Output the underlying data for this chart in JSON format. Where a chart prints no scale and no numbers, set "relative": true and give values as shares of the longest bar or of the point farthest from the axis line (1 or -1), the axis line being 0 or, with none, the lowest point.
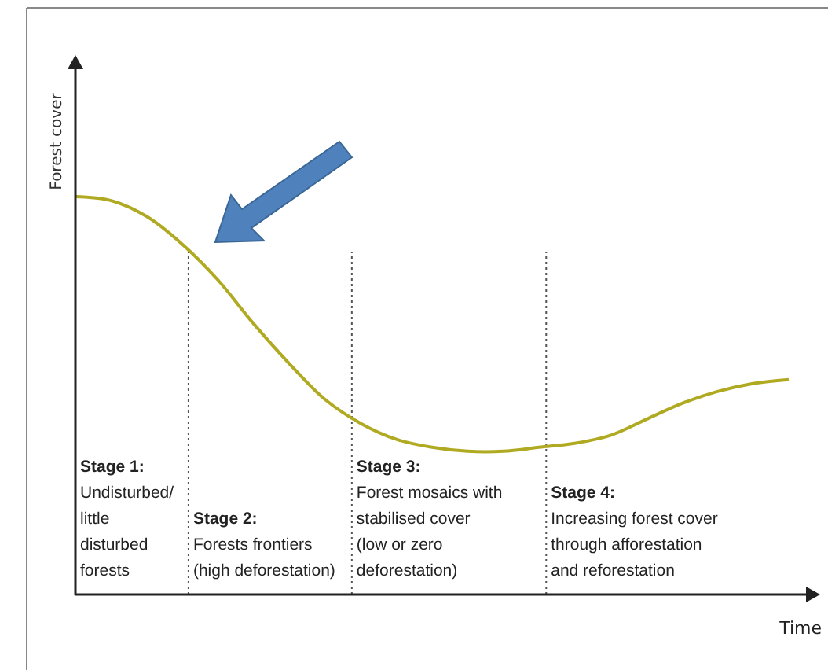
{
  "chart_data": {
    "type": "line",
    "relative": true,
    "xlabel": "Time",
    "ylabel": "Forest cover",
    "categories": [
      null,
      null,
      null,
      null,
      null,
      null,
      null,
      null,
      null,
      null,
      null,
      null,
      null,
      null,
      null,
      null,
      null,
      null,
      null,
      null,
      null
    ],
    "series": [
      {
        "color": "#b0aa22",
        "values": [
          1.0,
          0.99,
          0.95,
          0.88,
          0.79,
          0.68,
          0.58,
          0.49,
          0.43,
          0.39,
          0.37,
          0.36,
          0.36,
          0.37,
          0.38,
          0.4,
          0.44,
          0.48,
          0.51,
          0.53,
          0.54
        ]
      }
    ],
    "annotations": [
      "Stage 1:\nUndisturbed/\nlittle\ndisturbed\nforests",
      "Stage 2:\nForests frontiers\n(high deforestation)",
      "Stage 3:\nForest mosaics with\nstabilised cover\n(low or zero\ndeforestation)",
      "Stage 4:\nIncreasing forest cover\nthrough afforestation\nand reforestation"
    ]
  }
}
